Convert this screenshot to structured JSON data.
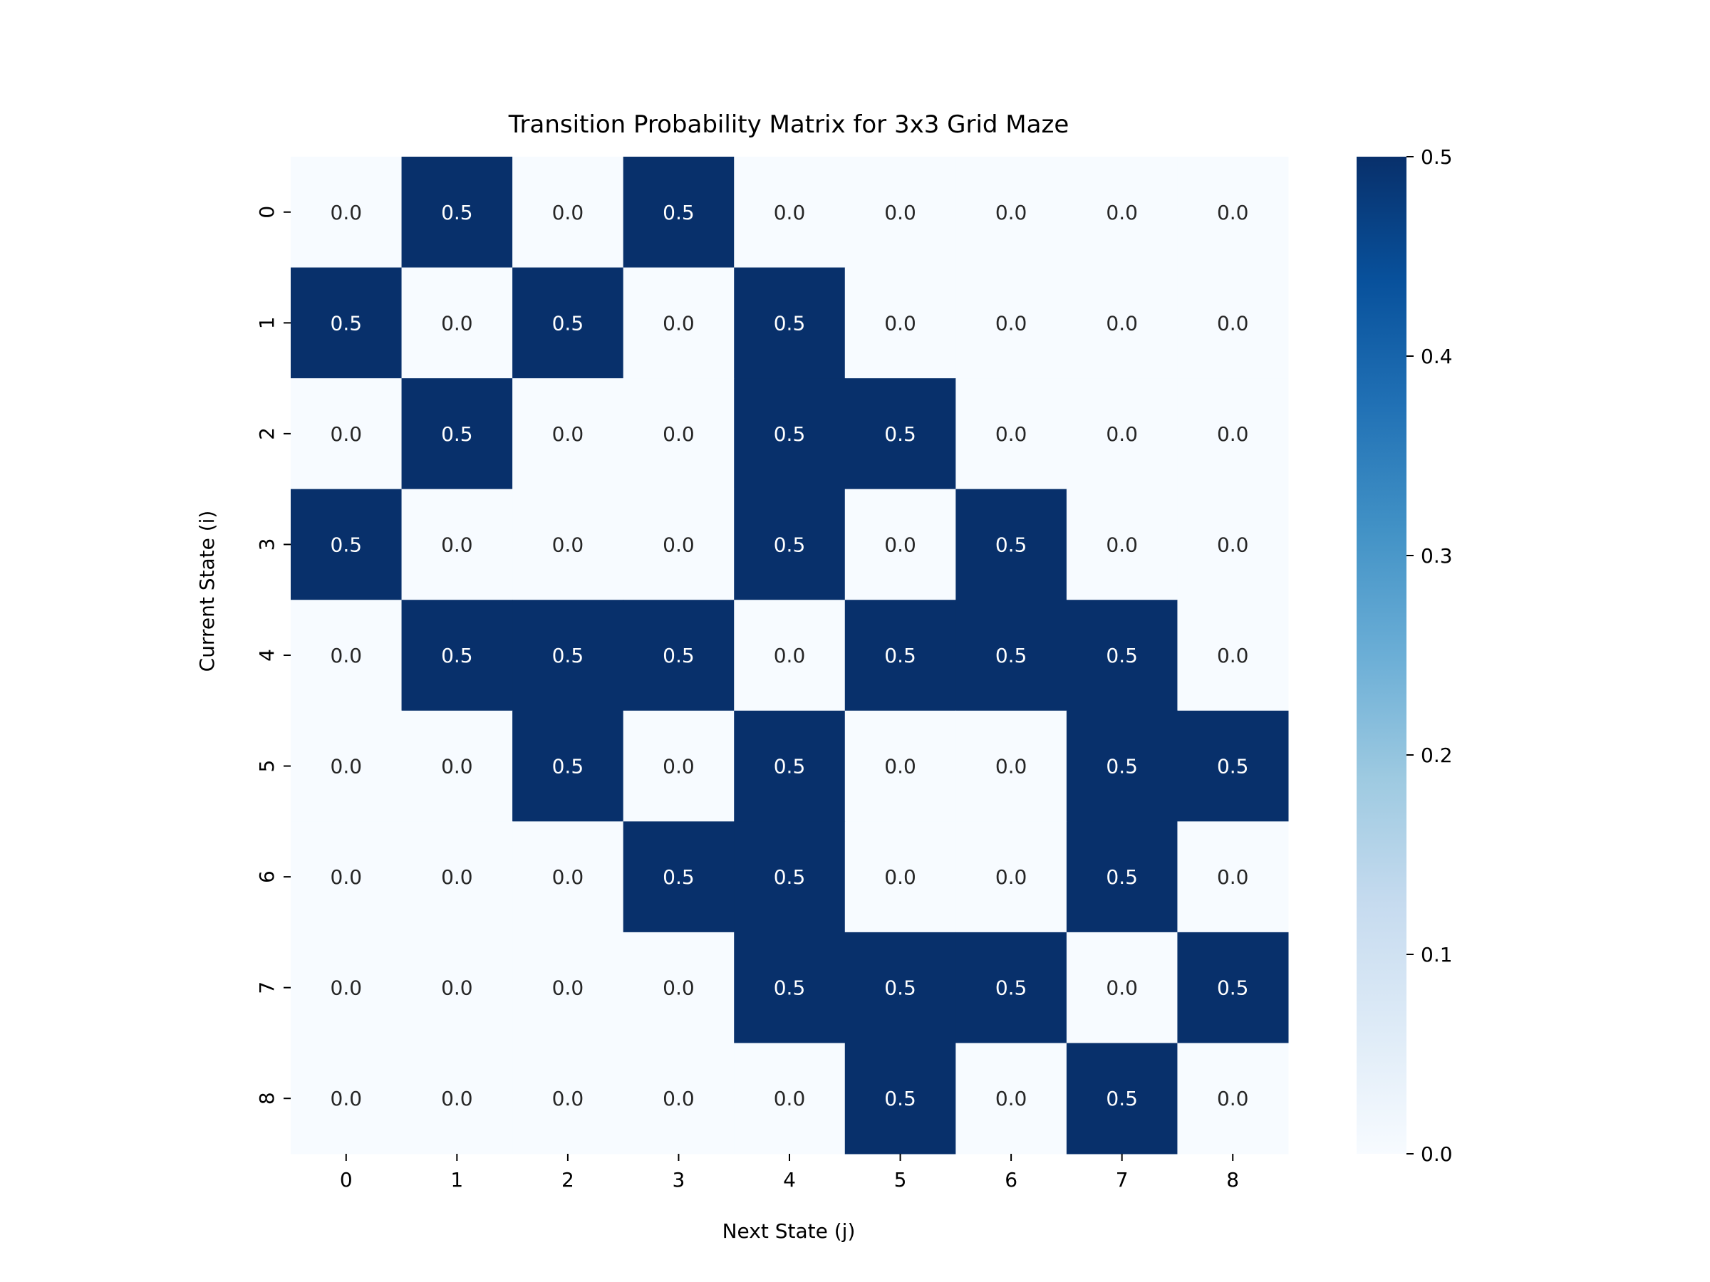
{
  "chart_data": {
    "type": "heatmap",
    "title": "Transition Probability Matrix for 3x3 Grid Maze",
    "xlabel": "Next State (j)",
    "ylabel": "Current State (i)",
    "x_categories": [
      "0",
      "1",
      "2",
      "3",
      "4",
      "5",
      "6",
      "7",
      "8"
    ],
    "y_categories": [
      "0",
      "1",
      "2",
      "3",
      "4",
      "5",
      "6",
      "7",
      "8"
    ],
    "values": [
      [
        0.0,
        0.5,
        0.0,
        0.5,
        0.0,
        0.0,
        0.0,
        0.0,
        0.0
      ],
      [
        0.5,
        0.0,
        0.5,
        0.0,
        0.5,
        0.0,
        0.0,
        0.0,
        0.0
      ],
      [
        0.0,
        0.5,
        0.0,
        0.0,
        0.5,
        0.5,
        0.0,
        0.0,
        0.0
      ],
      [
        0.5,
        0.0,
        0.0,
        0.0,
        0.5,
        0.0,
        0.5,
        0.0,
        0.0
      ],
      [
        0.0,
        0.5,
        0.5,
        0.5,
        0.0,
        0.5,
        0.5,
        0.5,
        0.0
      ],
      [
        0.0,
        0.0,
        0.5,
        0.0,
        0.5,
        0.0,
        0.0,
        0.5,
        0.5
      ],
      [
        0.0,
        0.0,
        0.0,
        0.5,
        0.5,
        0.0,
        0.0,
        0.5,
        0.0
      ],
      [
        0.0,
        0.0,
        0.0,
        0.0,
        0.5,
        0.5,
        0.5,
        0.0,
        0.5
      ],
      [
        0.0,
        0.0,
        0.0,
        0.0,
        0.0,
        0.5,
        0.0,
        0.5,
        0.0
      ]
    ],
    "colorbar": {
      "range": [
        0.0,
        0.5
      ],
      "ticks": [
        "0.0",
        "0.1",
        "0.2",
        "0.3",
        "0.4",
        "0.5"
      ],
      "colormap": "Blues",
      "low_color": "#f7fbff",
      "high_color": "#08306b"
    },
    "annotation_colors": {
      "on_dark": "#ffffff",
      "on_light": "#262626"
    }
  }
}
